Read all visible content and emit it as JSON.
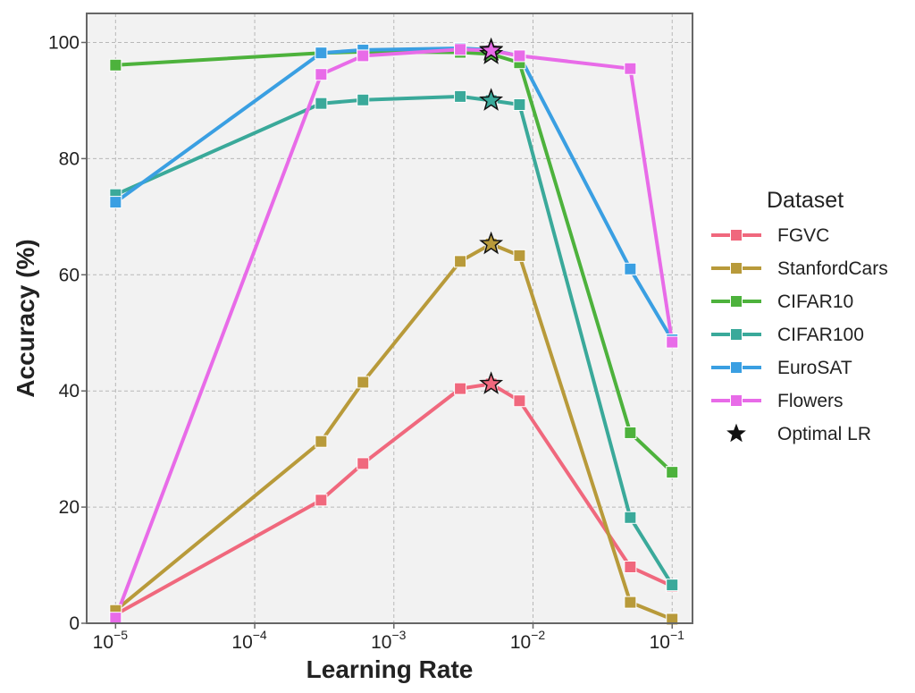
{
  "chart_data": {
    "type": "line",
    "xlabel": "Learning Rate",
    "ylabel": "Accuracy (%)",
    "x_scale": "log",
    "xlim": [
      6.2e-06,
      0.14
    ],
    "ylim": [
      0,
      105
    ],
    "grid": true,
    "legend_position": "right",
    "legend_title": "Dataset",
    "x_ticks": [
      {
        "base": "10",
        "exp": "−5",
        "value": 1e-05
      },
      {
        "base": "10",
        "exp": "−4",
        "value": 0.0001
      },
      {
        "base": "10",
        "exp": "−3",
        "value": 0.001
      },
      {
        "base": "10",
        "exp": "−2",
        "value": 0.01
      },
      {
        "base": "10",
        "exp": "−1",
        "value": 0.1
      }
    ],
    "y_ticks": [
      {
        "label": "0",
        "value": 0
      },
      {
        "label": "20",
        "value": 20
      },
      {
        "label": "40",
        "value": 40
      },
      {
        "label": "60",
        "value": 60
      },
      {
        "label": "80",
        "value": 80
      },
      {
        "label": "100",
        "value": 100
      }
    ],
    "x": [
      1e-05,
      0.0003,
      0.0006,
      0.003,
      0.005,
      0.008,
      0.05,
      0.1
    ],
    "series": [
      {
        "name": "FGVC",
        "color": "#f0687d",
        "values": [
          1.5,
          21.2,
          27.5,
          40.4,
          41.2,
          38.3,
          9.7,
          6.4
        ]
      },
      {
        "name": "StanfordCars",
        "color": "#b89a3a",
        "values": [
          2.2,
          31.3,
          41.5,
          62.3,
          65.3,
          63.3,
          3.6,
          0.7
        ]
      },
      {
        "name": "CIFAR10",
        "color": "#4db23c",
        "values": [
          96.1,
          98.2,
          98.4,
          98.3,
          98.0,
          96.5,
          32.8,
          26.0
        ]
      },
      {
        "name": "CIFAR100",
        "color": "#3aa99a",
        "values": [
          73.8,
          89.5,
          90.1,
          90.7,
          90.0,
          89.3,
          18.2,
          6.6
        ]
      },
      {
        "name": "EuroSAT",
        "color": "#3a9fe2",
        "values": [
          72.5,
          98.2,
          98.7,
          99.0,
          98.7,
          97.7,
          61.0,
          48.8
        ]
      },
      {
        "name": "Flowers",
        "color": "#e86be8",
        "values": [
          0.9,
          94.5,
          97.7,
          98.8,
          98.6,
          97.7,
          95.5,
          48.4
        ]
      }
    ],
    "optimal": {
      "label": "Optimal LR",
      "points": [
        {
          "series": "FGVC",
          "x": 0.005,
          "y": 41.2
        },
        {
          "series": "StanfordCars",
          "x": 0.005,
          "y": 65.3
        },
        {
          "series": "CIFAR10",
          "x": 0.005,
          "y": 98.0
        },
        {
          "series": "CIFAR100",
          "x": 0.005,
          "y": 90.0
        },
        {
          "series": "EuroSAT",
          "x": 0.005,
          "y": 98.7
        },
        {
          "series": "Flowers",
          "x": 0.005,
          "y": 98.6
        }
      ]
    }
  }
}
